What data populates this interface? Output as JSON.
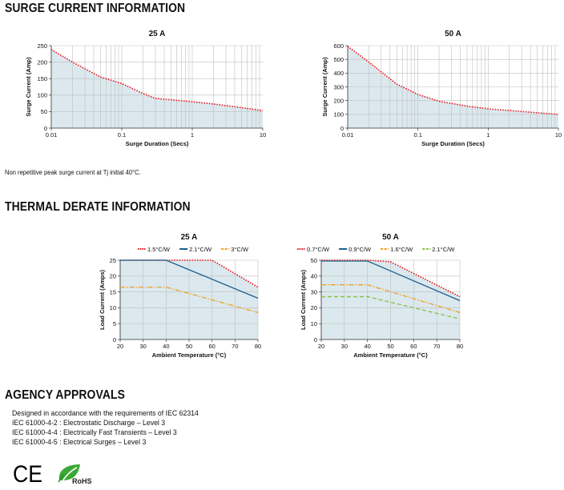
{
  "sections": {
    "surge": {
      "title": "SURGE CURRENT INFORMATION",
      "note": "Non repetitive peak surge current at Tj initial 40°C."
    },
    "thermal": {
      "title": "THERMAL DERATE INFORMATION"
    },
    "agency": {
      "title": "AGENCY APPROVALS",
      "lines": [
        "Designed in accordance with the requirements of IEC 62314",
        "IEC 61000-4-2 : Electrostatic Discharge – Level 3",
        "IEC 61000-4-4 : Electrically Fast Transients – Level 3",
        "IEC 61000-4-5 : Electrical Surges – Level 3"
      ],
      "logos": {
        "ce": "CE",
        "rohs": "RoHS"
      }
    }
  },
  "chart_data": [
    {
      "id": "surge25",
      "type": "area",
      "title": "25 A",
      "xlabel": "Surge Duration (Secs)",
      "ylabel": "Surge Current (Amp)",
      "xscale": "log",
      "xlim": [
        0.01,
        10
      ],
      "ylim": [
        0,
        250
      ],
      "xticks": [
        0.01,
        0.1,
        1,
        10
      ],
      "xticklabels": [
        "0.01",
        "0.1",
        "1",
        "10"
      ],
      "yticks": [
        0,
        50,
        100,
        150,
        200,
        250
      ],
      "grid": true,
      "series": [
        {
          "name": "Surge current",
          "color": "#e8191f",
          "style": "dotted",
          "x": [
            0.01,
            0.02,
            0.05,
            0.1,
            0.2,
            0.3,
            0.5,
            1,
            2,
            5,
            10
          ],
          "y": [
            238,
            200,
            155,
            135,
            105,
            90,
            86,
            80,
            73,
            62,
            53
          ]
        }
      ]
    },
    {
      "id": "surge50",
      "type": "area",
      "title": "50 A",
      "xlabel": "Surge Duration (Secs)",
      "ylabel": "Surge Current (Amp)",
      "xscale": "log",
      "xlim": [
        0.01,
        10
      ],
      "ylim": [
        0,
        600
      ],
      "xticks": [
        0.01,
        0.1,
        1,
        10
      ],
      "xticklabels": [
        "0.01",
        "0.1",
        "1",
        "10"
      ],
      "yticks": [
        0,
        100,
        200,
        300,
        400,
        500,
        600
      ],
      "grid": true,
      "series": [
        {
          "name": "Surge current",
          "color": "#e8191f",
          "style": "dotted",
          "x": [
            0.01,
            0.02,
            0.05,
            0.1,
            0.2,
            0.5,
            1,
            2,
            5,
            10
          ],
          "y": [
            595,
            480,
            320,
            245,
            195,
            160,
            140,
            128,
            112,
            100
          ]
        }
      ]
    },
    {
      "id": "thermal25",
      "type": "line",
      "title": "25 A",
      "xlabel": "Ambient Temperature (°C)",
      "ylabel": "Load Current (Amps)",
      "xlim": [
        20,
        80
      ],
      "ylim": [
        0,
        25
      ],
      "xticks": [
        20,
        30,
        40,
        50,
        60,
        70,
        80
      ],
      "yticks": [
        0,
        5,
        10,
        15,
        20,
        25
      ],
      "grid": true,
      "series": [
        {
          "name": "1.5°C/W",
          "color": "#e8191f",
          "style": "dotted",
          "x": [
            20,
            40,
            60,
            80
          ],
          "y": [
            25,
            25,
            25,
            16.5
          ]
        },
        {
          "name": "2.1°C/W",
          "color": "#1f5f8b",
          "style": "solid",
          "x": [
            20,
            40,
            80
          ],
          "y": [
            25,
            25,
            13
          ]
        },
        {
          "name": "3°C/W",
          "color": "#f0a020",
          "style": "dashdot",
          "x": [
            20,
            40,
            80
          ],
          "y": [
            16.5,
            16.5,
            8.5
          ]
        }
      ]
    },
    {
      "id": "thermal50",
      "type": "line",
      "title": "50 A",
      "xlabel": "Ambient Temperature (°C)",
      "ylabel": "Load Current (Amps)",
      "xlim": [
        20,
        80
      ],
      "ylim": [
        0,
        50
      ],
      "xticks": [
        20,
        30,
        40,
        50,
        60,
        70,
        80
      ],
      "yticks": [
        0,
        10,
        20,
        30,
        40,
        50
      ],
      "grid": true,
      "series": [
        {
          "name": "0.7°C/W",
          "color": "#e8191f",
          "style": "dotted",
          "x": [
            20,
            40,
            50,
            80
          ],
          "y": [
            50,
            50,
            49,
            27
          ]
        },
        {
          "name": "0.9°C/W",
          "color": "#1f5f8b",
          "style": "solid",
          "x": [
            20,
            40,
            80
          ],
          "y": [
            49.5,
            49.5,
            24.5
          ]
        },
        {
          "name": "1.6°C/W",
          "color": "#f0a020",
          "style": "dashdot",
          "x": [
            20,
            40,
            80
          ],
          "y": [
            34.5,
            34.5,
            17
          ]
        },
        {
          "name": "2.1°C/W",
          "color": "#88c040",
          "style": "dashed",
          "x": [
            20,
            40,
            80
          ],
          "y": [
            27,
            27,
            13
          ]
        }
      ]
    }
  ]
}
